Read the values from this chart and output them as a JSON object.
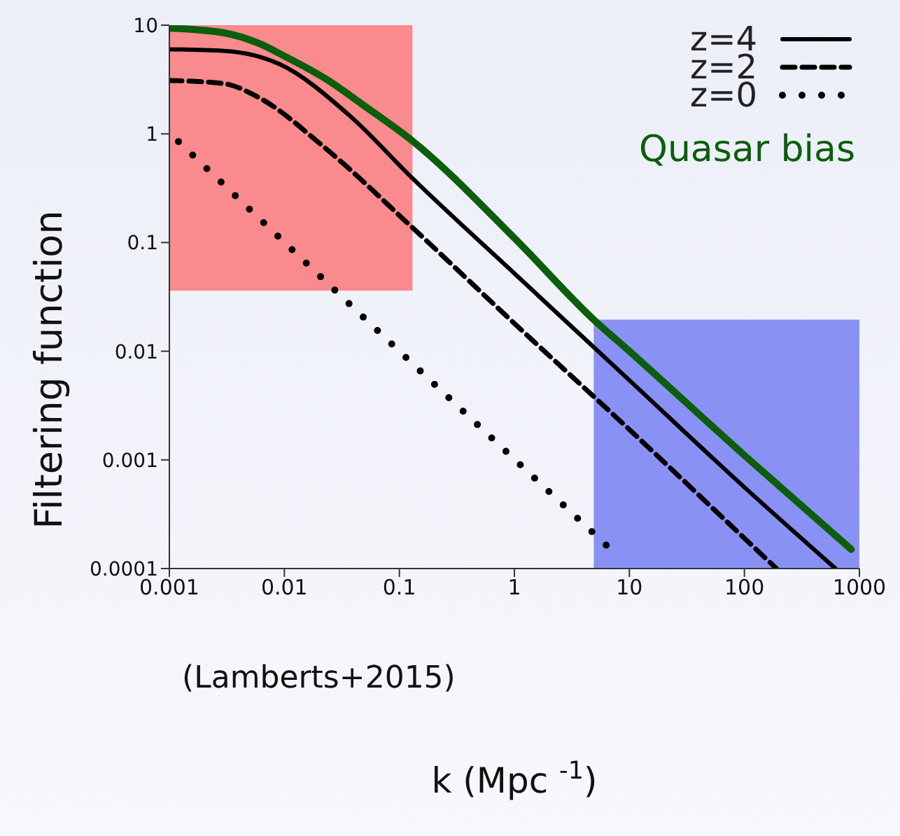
{
  "chart_data": {
    "type": "line",
    "xlabel": "k (Mpc $^{-1}$)",
    "ylabel": "Filtering function",
    "log": "xy",
    "xlim": [
      0.001,
      1000
    ],
    "xticks": [
      0.001,
      0.01,
      0.1,
      1,
      10,
      100,
      1000
    ],
    "ylim": [
      0.0001,
      10
    ],
    "yticks": [
      0.0001,
      0.001,
      0.01,
      0.1,
      1,
      10
    ],
    "legend": "top right",
    "grid": false,
    "annotations": [
      "(Lamberts+2015)"
    ],
    "series": [
      {
        "type": "line",
        "color": "#f98a8d",
        "x": [
          0.001,
          0.13
        ],
        "values": [
          0.037,
          0.037
        ],
        "lower": [
          0.037,
          0.037
        ],
        "upper": [
          10,
          10
        ]
      },
      {
        "type": "area",
        "color": "#8a91f5",
        "x": [
          4.9,
          1000
        ],
        "values": [
          0.0195,
          0.0195
        ]
      },
      {
        "name": "z=4",
        "color": "#000000",
        "line_style": "solid",
        "x": [
          0.001,
          0.003,
          0.009,
          0.037,
          0.13,
          1,
          10,
          100,
          620
        ],
        "values": [
          6.0,
          5.8,
          4.4,
          1.47,
          0.39,
          0.052,
          0.0054,
          0.00056,
          0.0001
        ]
      },
      {
        "name": "z=2",
        "color": "#000000",
        "line_style": "dashed",
        "x": [
          0.001,
          0.003,
          0.0058,
          0.023,
          0.13,
          1,
          10,
          100,
          190
        ],
        "values": [
          3.1,
          2.9,
          2.2,
          0.73,
          0.137,
          0.018,
          0.0019,
          0.00019,
          0.0001
        ]
      },
      {
        "name": "z=0",
        "color": "#000000",
        "line_style": "dotted",
        "x": [
          0.0012,
          0.1,
          7.4
        ],
        "values": [
          0.85,
          0.01,
          0.00014
        ]
      },
      {
        "name": "Quasar bias",
        "color": "#0b5e0b",
        "line_style": "solid",
        "x": [
          0.001,
          0.003,
          0.006,
          0.01,
          0.023,
          0.05,
          0.13,
          1,
          4.9,
          10,
          100,
          850
        ],
        "values": [
          9.4,
          8.5,
          6.8,
          5.2,
          3.2,
          1.8,
          0.86,
          0.11,
          0.0195,
          0.01,
          0.0011,
          0.00015
        ]
      }
    ]
  }
}
